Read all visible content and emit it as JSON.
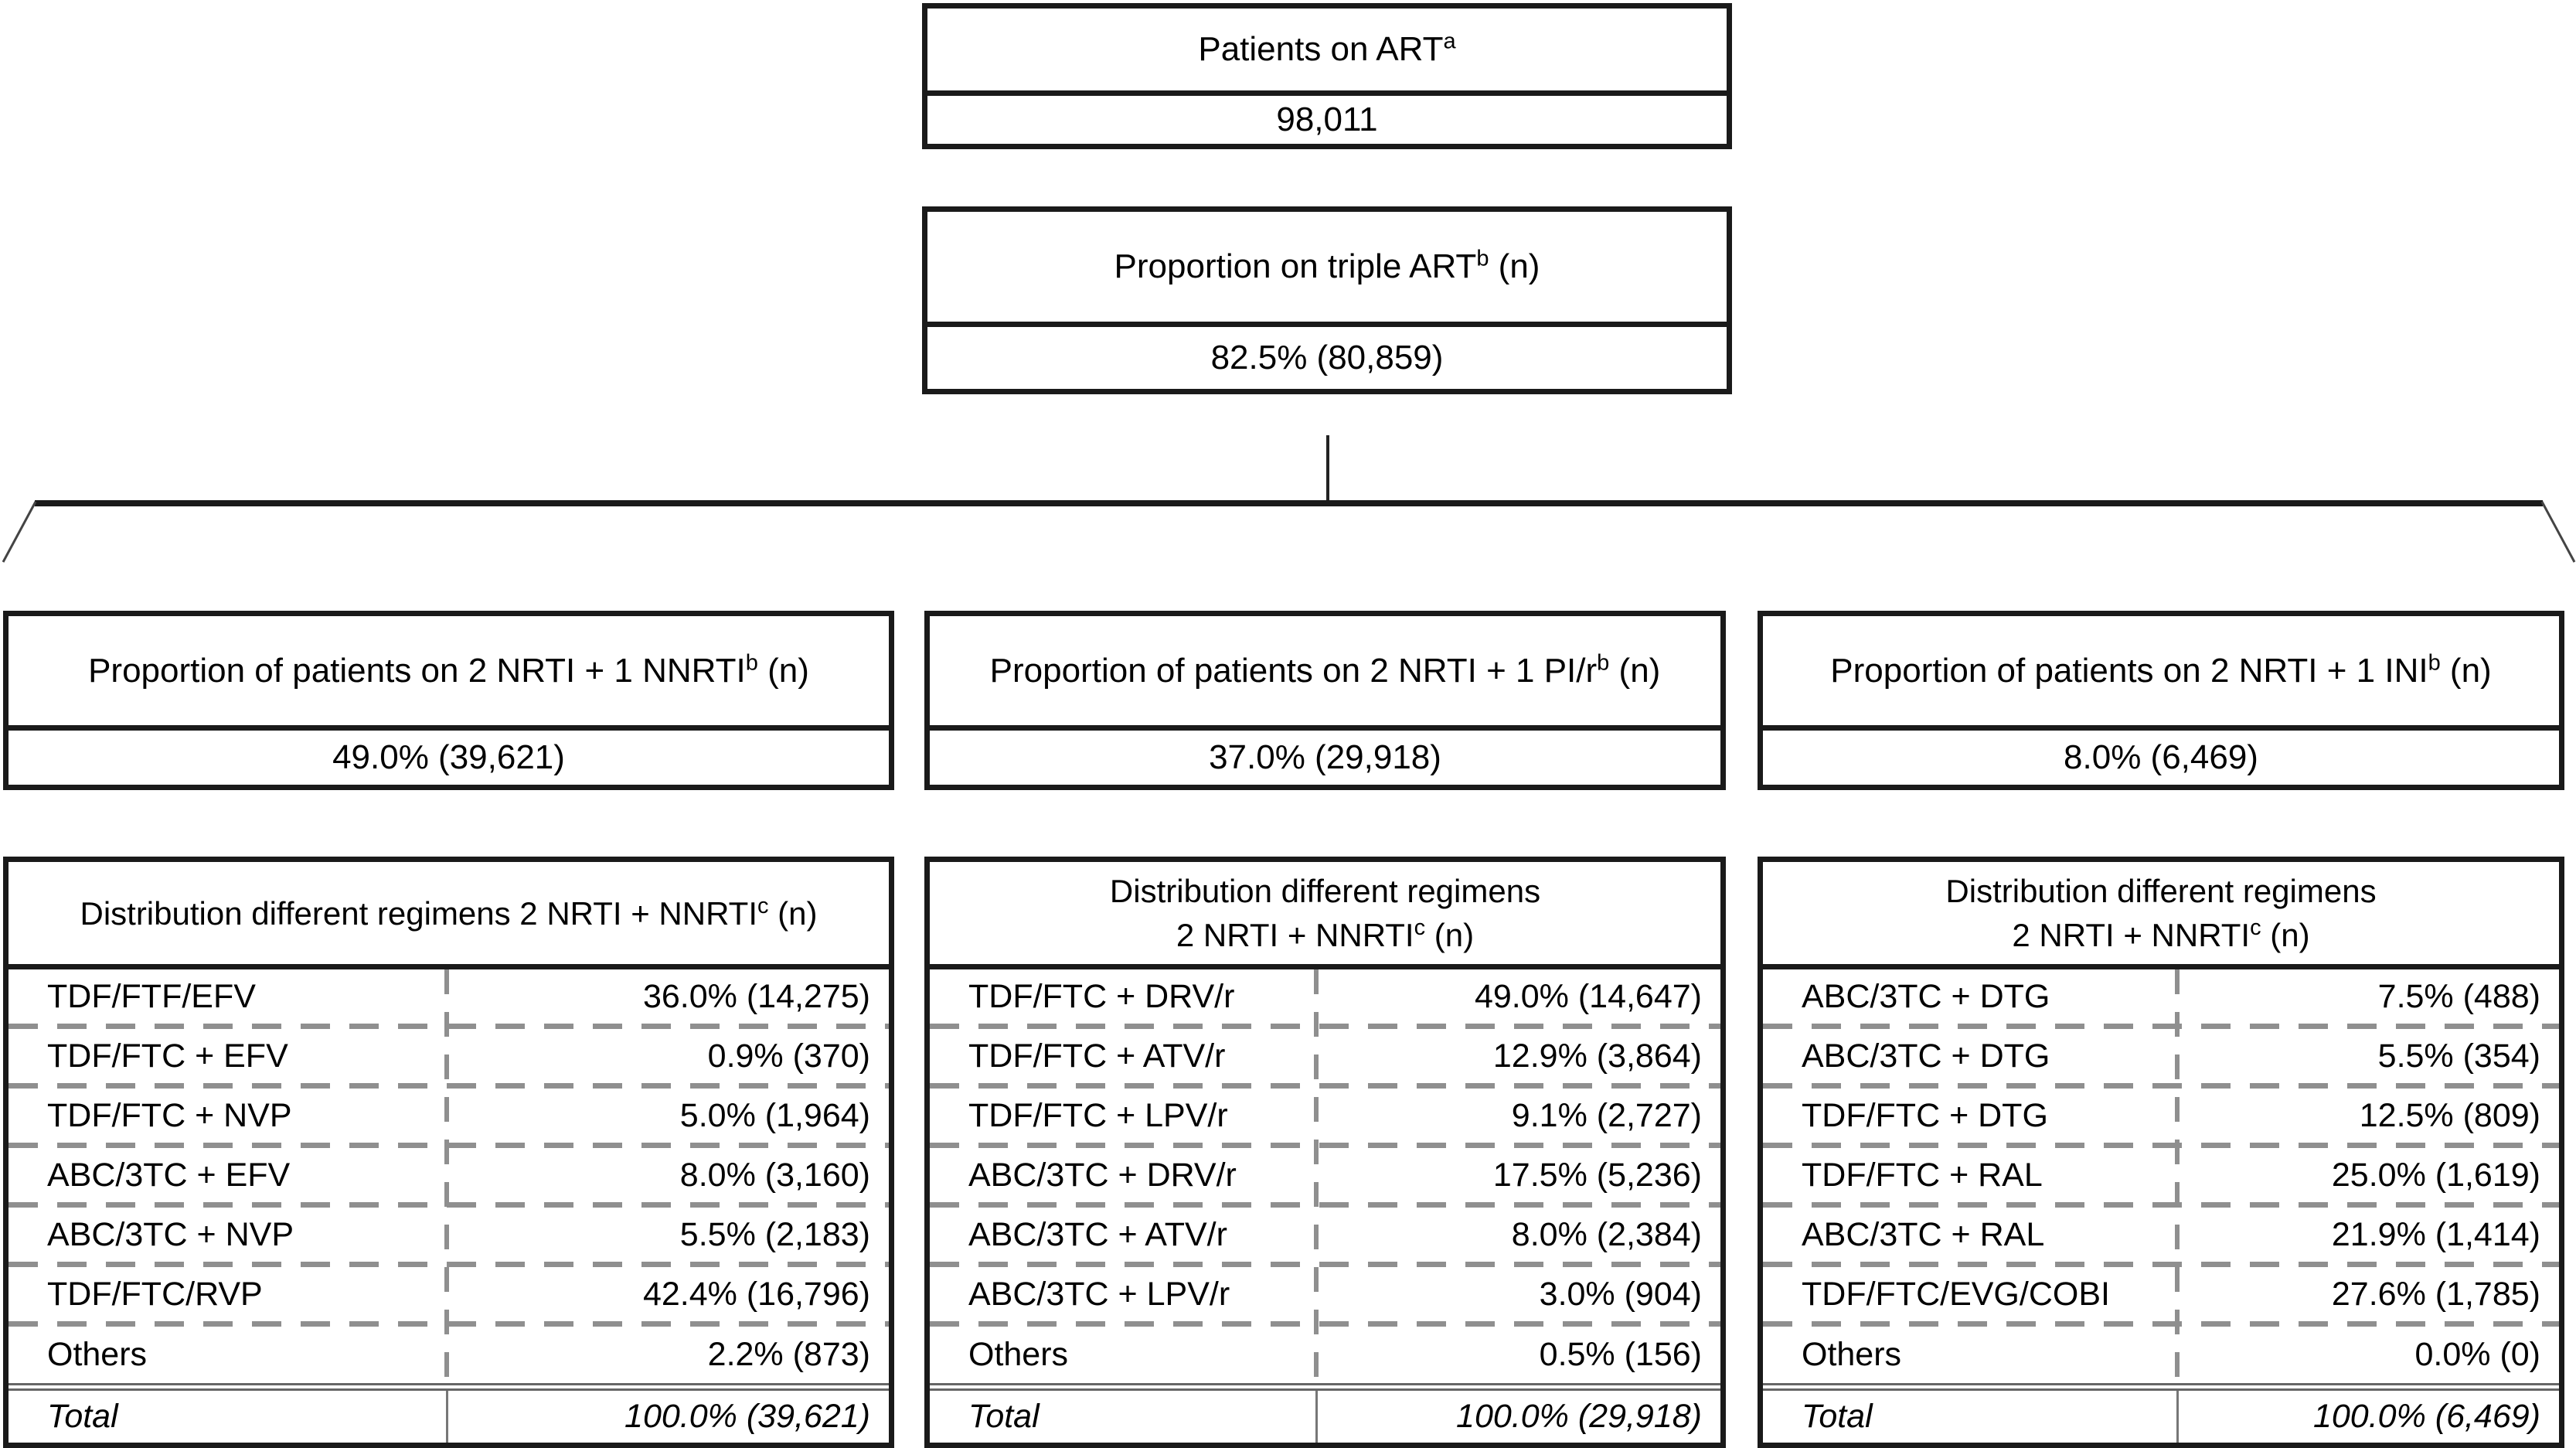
{
  "style": {
    "ink": "#1a1a1a",
    "dash_gray": "#8f8f8f",
    "double_rule": "#666666"
  },
  "flow": {
    "patients_box": {
      "title": "Patients on ART",
      "sup": "a",
      "value": "98,011"
    },
    "triple_box": {
      "title": "Proportion on triple ART",
      "sup": "b",
      "suffix": " (n)",
      "value": "82.5% (80,859)"
    }
  },
  "branches": [
    {
      "proportion": {
        "text": "Proportion of patients on 2 NRTI + 1 NNRTI",
        "sup": "b",
        "suffix": " (n)",
        "value": "49.0% (39,621)"
      },
      "table": {
        "title_lines": [
          {
            "text": "Distribution different regimens 2 NRTI + NNRTI",
            "sup": "c",
            "suffix": " (n)"
          }
        ],
        "rows": [
          {
            "label": "TDF/FTF/EFV",
            "value": "36.0% (14,275)"
          },
          {
            "label": "TDF/FTC + EFV",
            "value": "0.9% (370)"
          },
          {
            "label": "TDF/FTC + NVP",
            "value": "5.0% (1,964)"
          },
          {
            "label": "ABC/3TC + EFV",
            "value": "8.0% (3,160)"
          },
          {
            "label": "ABC/3TC + NVP",
            "value": "5.5% (2,183)"
          },
          {
            "label": "TDF/FTC/RVP",
            "value": "42.4% (16,796)"
          },
          {
            "label": "Others",
            "value": "2.2% (873)"
          }
        ],
        "total": {
          "label": "Total",
          "value": "100.0% (39,621)"
        }
      }
    },
    {
      "proportion": {
        "text": "Proportion of patients on 2 NRTI + 1 PI/r",
        "sup": "b",
        "suffix": " (n)",
        "value": "37.0% (29,918)"
      },
      "table": {
        "title_lines": [
          {
            "text": "Distribution different regimens"
          },
          {
            "text": "2 NRTI + NNRTI",
            "sup": "c",
            "suffix": " (n)"
          }
        ],
        "rows": [
          {
            "label": "TDF/FTC + DRV/r",
            "value": "49.0% (14,647)"
          },
          {
            "label": "TDF/FTC + ATV/r",
            "value": "12.9% (3,864)"
          },
          {
            "label": "TDF/FTC + LPV/r",
            "value": "9.1% (2,727)"
          },
          {
            "label": "ABC/3TC + DRV/r",
            "value": "17.5% (5,236)"
          },
          {
            "label": "ABC/3TC + ATV/r",
            "value": "8.0% (2,384)"
          },
          {
            "label": "ABC/3TC + LPV/r",
            "value": "3.0% (904)"
          },
          {
            "label": "Others",
            "value": "0.5% (156)"
          }
        ],
        "total": {
          "label": "Total",
          "value": "100.0% (29,918)"
        }
      }
    },
    {
      "proportion": {
        "text": "Proportion of patients on 2 NRTI + 1 INI",
        "sup": "b",
        "suffix": " (n)",
        "value": "8.0% (6,469)"
      },
      "table": {
        "title_lines": [
          {
            "text": "Distribution different regimens"
          },
          {
            "text": "2 NRTI + NNRTI",
            "sup": "c",
            "suffix": " (n)"
          }
        ],
        "rows": [
          {
            "label": "ABC/3TC + DTG",
            "value": "7.5% (488)"
          },
          {
            "label": "ABC/3TC + DTG",
            "value": "5.5% (354)"
          },
          {
            "label": "TDF/FTC + DTG",
            "value": "12.5% (809)"
          },
          {
            "label": "TDF/FTC + RAL",
            "value": "25.0% (1,619)"
          },
          {
            "label": "ABC/3TC + RAL",
            "value": "21.9% (1,414)"
          },
          {
            "label": "TDF/FTC/EVG/COBI",
            "value": "27.6% (1,785)"
          },
          {
            "label": "Others",
            "value": "0.0% (0)"
          }
        ],
        "total": {
          "label": "Total",
          "value": "100.0% (6,469)"
        }
      }
    }
  ]
}
